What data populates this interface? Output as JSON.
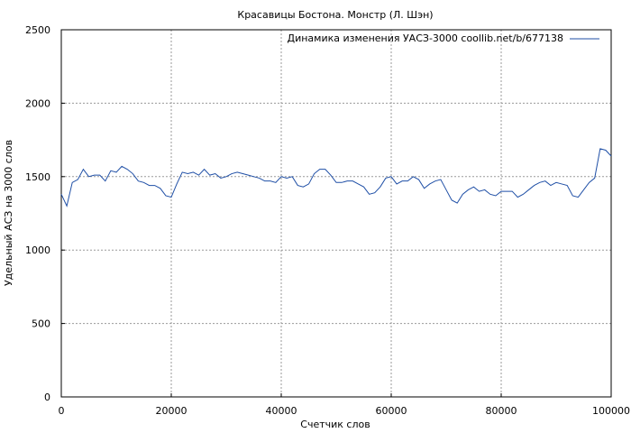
{
  "chart_data": {
    "type": "line",
    "title": "Красавицы Бостона. Монстр (Л. Шэн)",
    "xlabel": "Счетчик слов",
    "ylabel": "Удельный АСЗ на 3000 слов",
    "xlim": [
      0,
      100000
    ],
    "ylim": [
      0,
      2500
    ],
    "xticks": [
      0,
      20000,
      40000,
      60000,
      80000,
      100000
    ],
    "yticks": [
      0,
      500,
      1000,
      1500,
      2000,
      2500
    ],
    "grid": true,
    "legend_position": "top-right",
    "line_color": "#1f4fa6",
    "series": [
      {
        "name": "Динамика изменения УАСЗ-3000 coollib.net/b/677138",
        "x": [
          0,
          1000,
          2000,
          3000,
          4000,
          5000,
          6000,
          7000,
          8000,
          9000,
          10000,
          11000,
          12000,
          13000,
          14000,
          15000,
          16000,
          17000,
          18000,
          19000,
          20000,
          21000,
          22000,
          23000,
          24000,
          25000,
          26000,
          27000,
          28000,
          29000,
          30000,
          31000,
          32000,
          33000,
          34000,
          35000,
          36000,
          37000,
          38000,
          39000,
          40000,
          41000,
          42000,
          43000,
          44000,
          45000,
          46000,
          47000,
          48000,
          49000,
          50000,
          51000,
          52000,
          53000,
          54000,
          55000,
          56000,
          57000,
          58000,
          59000,
          60000,
          61000,
          62000,
          63000,
          64000,
          65000,
          66000,
          67000,
          68000,
          69000,
          70000,
          71000,
          72000,
          73000,
          74000,
          75000,
          76000,
          77000,
          78000,
          79000,
          80000,
          81000,
          82000,
          83000,
          84000,
          85000,
          86000,
          87000,
          88000,
          89000,
          90000,
          91000,
          92000,
          93000,
          94000,
          95000,
          96000,
          97000,
          98000,
          99000,
          100000
        ],
        "y": [
          1380,
          1300,
          1460,
          1480,
          1550,
          1500,
          1510,
          1510,
          1470,
          1540,
          1530,
          1570,
          1550,
          1520,
          1470,
          1460,
          1440,
          1440,
          1420,
          1370,
          1360,
          1450,
          1530,
          1520,
          1530,
          1510,
          1550,
          1510,
          1520,
          1490,
          1500,
          1520,
          1530,
          1520,
          1510,
          1500,
          1490,
          1470,
          1470,
          1460,
          1500,
          1490,
          1500,
          1440,
          1430,
          1450,
          1520,
          1550,
          1550,
          1510,
          1460,
          1460,
          1470,
          1470,
          1450,
          1430,
          1380,
          1390,
          1430,
          1490,
          1500,
          1450,
          1470,
          1470,
          1500,
          1480,
          1420,
          1450,
          1470,
          1480,
          1410,
          1340,
          1320,
          1380,
          1410,
          1430,
          1400,
          1410,
          1380,
          1370,
          1400,
          1400,
          1400,
          1360,
          1380,
          1410,
          1440,
          1460,
          1470,
          1440,
          1460,
          1450,
          1440,
          1370,
          1360,
          1410,
          1460,
          1490,
          1690,
          1680,
          1640
        ]
      }
    ]
  }
}
